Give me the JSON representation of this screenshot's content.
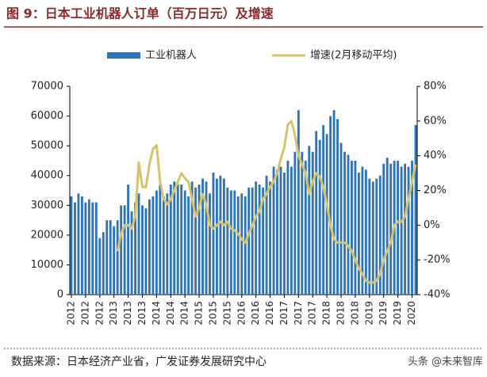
{
  "chart_data": {
    "type": "bar-line",
    "title": "图 9：日本工业机器人订单（百万日元）及增速",
    "source": "数据来源：日本经济产业省，广发证券发展研究中心",
    "watermark": "头条 @未来智库",
    "categories": [
      "2012",
      null,
      null,
      null,
      "2012",
      null,
      null,
      null,
      "2012",
      null,
      null,
      null,
      "2013",
      null,
      null,
      null,
      "2013",
      null,
      null,
      null,
      "2013",
      null,
      null,
      null,
      "2014",
      null,
      null,
      null,
      "2014",
      null,
      null,
      null,
      "2014",
      null,
      null,
      null,
      "2015",
      null,
      null,
      null,
      "2015",
      null,
      null,
      null,
      "2015",
      null,
      null,
      null,
      "2016",
      null,
      null,
      null,
      "2016",
      null,
      null,
      null,
      "2016",
      null,
      null,
      null,
      "2017",
      null,
      null,
      null,
      "2017",
      null,
      null,
      null,
      "2017",
      null,
      null,
      null,
      "2018",
      null,
      null,
      null,
      "2018",
      null,
      null,
      null,
      "2018",
      null,
      null,
      null,
      "2019",
      null,
      null,
      null,
      "2019",
      null,
      null,
      null,
      "2019",
      null,
      null,
      null,
      "2020",
      null
    ],
    "series": [
      {
        "name": "工业机器人",
        "color": "#2f75b5",
        "axis": "y",
        "values": [
          33000,
          31000,
          34000,
          33000,
          31000,
          32000,
          31000,
          31000,
          19000,
          21000,
          25000,
          25000,
          23000,
          25000,
          30000,
          30000,
          37000,
          28000,
          31000,
          34000,
          30000,
          29000,
          32000,
          33000,
          35000,
          37000,
          33000,
          34000,
          37000,
          38000,
          37000,
          37000,
          35000,
          33000,
          38000,
          36000,
          37000,
          39000,
          38000,
          34000,
          41000,
          39000,
          40000,
          39000,
          36000,
          35000,
          35000,
          33000,
          34000,
          33000,
          36000,
          36000,
          38000,
          37000,
          36000,
          40000,
          38000,
          43000,
          42000,
          43000,
          41000,
          45000,
          43000,
          48000,
          62000,
          48000,
          45000,
          50000,
          48000,
          55000,
          52000,
          57000,
          54000,
          60000,
          62000,
          59000,
          51000,
          48000,
          47000,
          45000,
          45000,
          41000,
          43000,
          42000,
          39000,
          38000,
          39000,
          40000,
          44000,
          46000,
          44000,
          45000,
          45000,
          43000,
          44000,
          43000,
          45000,
          57000
        ]
      },
      {
        "name": "增速(2月移动平均)",
        "color": "#d9c36a",
        "axis": "y2",
        "values": [
          null,
          null,
          null,
          null,
          null,
          null,
          null,
          null,
          null,
          null,
          null,
          null,
          null,
          -15,
          -5,
          0,
          0,
          -2,
          5,
          36,
          22,
          22,
          35,
          44,
          46,
          25,
          15,
          12,
          15,
          20,
          25,
          30,
          27,
          25,
          15,
          5,
          10,
          18,
          12,
          0,
          -2,
          0,
          2,
          0,
          2,
          -2,
          -3,
          -5,
          -8,
          -10,
          -5,
          0,
          5,
          8,
          15,
          18,
          22,
          25,
          30,
          38,
          45,
          58,
          60,
          52,
          40,
          35,
          30,
          18,
          25,
          30,
          28,
          22,
          12,
          0,
          -8,
          -10,
          -10,
          -10,
          -12,
          -15,
          -20,
          -25,
          -28,
          -32,
          -33,
          -33,
          -32,
          -28,
          -20,
          -15,
          -10,
          0,
          2,
          2,
          5,
          15,
          25,
          35
        ]
      }
    ],
    "ylim": [
      0,
      70000
    ],
    "yticks": [
      0,
      10000,
      20000,
      30000,
      40000,
      50000,
      60000,
      70000
    ],
    "y2lim": [
      -40,
      80
    ],
    "y2ticks": [
      {
        "value": -40,
        "label": "-40%"
      },
      {
        "value": -20,
        "label": "-20%"
      },
      {
        "value": 0,
        "label": "0%"
      },
      {
        "value": 20,
        "label": "20%"
      },
      {
        "value": 40,
        "label": "40%"
      },
      {
        "value": 60,
        "label": "60%"
      },
      {
        "value": 80,
        "label": "80%"
      }
    ]
  }
}
